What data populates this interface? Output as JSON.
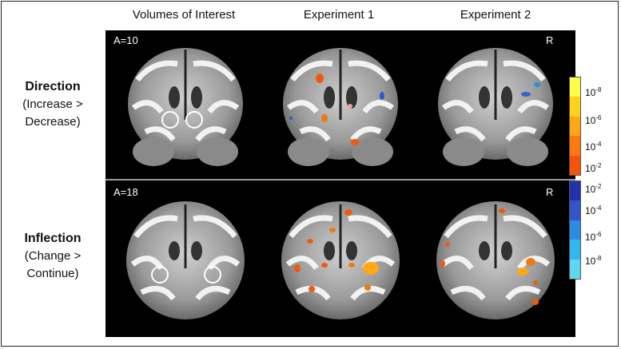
{
  "columns": [
    "Volumes of Interest",
    "Experiment 1",
    "Experiment 2"
  ],
  "rows": [
    {
      "title": "Direction",
      "line1": "(Increase >",
      "line2": "Decrease)",
      "coord": "A=10",
      "side": "R"
    },
    {
      "title": "Inflection",
      "line1": "(Change >",
      "line2": "Continue)",
      "coord": "A=18",
      "side": "R"
    }
  ],
  "colorbar_warm": {
    "colors": [
      "#ffff4a",
      "#ffd21e",
      "#ffa814",
      "#ff7a10",
      "#f5520c"
    ],
    "labels": [
      {
        "base": "10",
        "exp": "-8"
      },
      {
        "base": "10",
        "exp": "-6"
      },
      {
        "base": "10",
        "exp": "-4"
      },
      {
        "base": "10",
        "exp": "-2"
      }
    ]
  },
  "colorbar_cool": {
    "colors": [
      "#2233aa",
      "#3355cc",
      "#2c8de0",
      "#32b8ee",
      "#5fd6f2"
    ],
    "labels": [
      {
        "base": "10",
        "exp": "-2"
      },
      {
        "base": "10",
        "exp": "-4"
      },
      {
        "base": "10",
        "exp": "-6"
      },
      {
        "base": "10",
        "exp": "-8"
      }
    ]
  }
}
